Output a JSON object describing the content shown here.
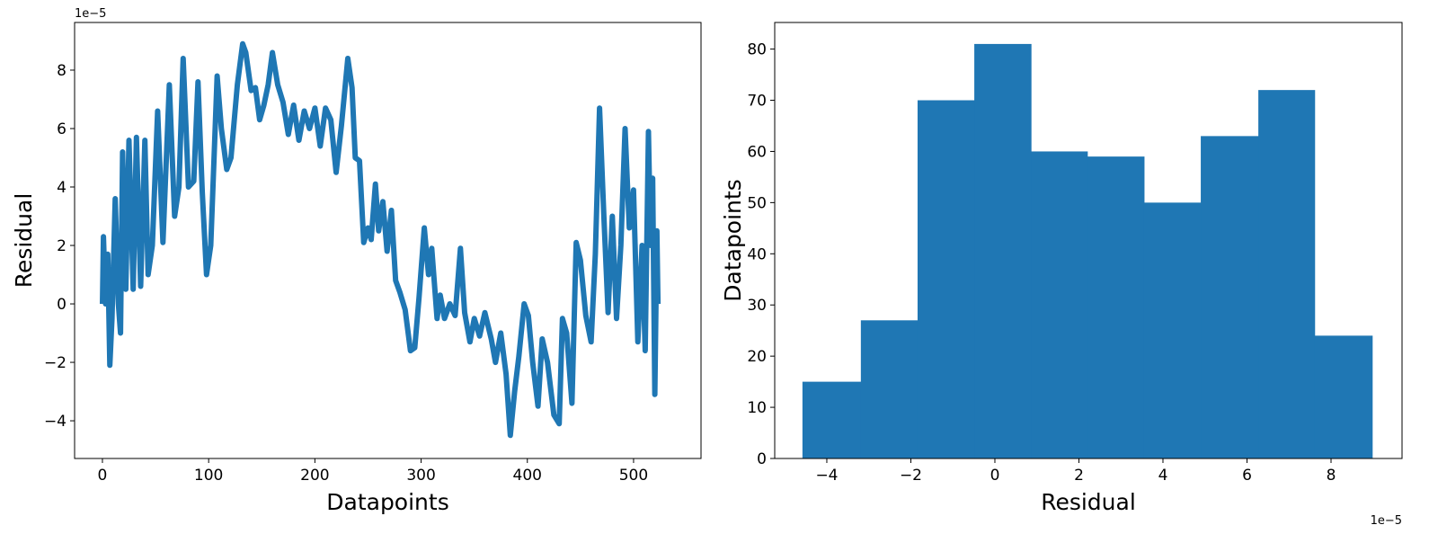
{
  "chart_data": [
    {
      "type": "line",
      "xlabel": "Datapoints",
      "ylabel": "Residual",
      "y_offset_label": "1e−5",
      "color": "#1f77b4",
      "x": [
        0,
        1,
        3,
        5,
        7,
        9,
        12,
        15,
        17,
        19,
        22,
        25,
        29,
        32,
        36,
        40,
        43,
        47,
        52,
        57,
        63,
        68,
        72,
        76,
        81,
        86,
        90,
        94,
        98,
        102,
        108,
        112,
        117,
        121,
        127,
        132,
        135,
        140,
        144,
        148,
        152,
        156,
        160,
        165,
        170,
        175,
        180,
        185,
        190,
        195,
        200,
        205,
        210,
        215,
        220,
        225,
        231,
        235,
        238,
        242,
        246,
        250,
        253,
        257,
        260,
        264,
        268,
        272,
        276,
        280,
        285,
        290,
        294,
        298,
        303,
        307,
        310,
        315,
        318,
        322,
        327,
        332,
        337,
        341,
        346,
        350,
        355,
        360,
        366,
        370,
        375,
        380,
        384,
        388,
        392,
        397,
        401,
        405,
        410,
        414,
        419,
        425,
        430,
        433,
        437,
        442,
        446,
        450,
        455,
        460,
        464,
        468,
        472,
        476,
        480,
        484,
        488,
        492,
        496,
        500,
        504,
        508,
        511,
        514,
        516,
        518,
        520,
        522,
        523
      ],
      "values": [
        0,
        2.3,
        0,
        1.7,
        -2.1,
        -0.5,
        3.6,
        0,
        -1,
        5.2,
        0.5,
        5.6,
        0.5,
        5.7,
        0.6,
        5.6,
        1,
        2,
        6.6,
        2.1,
        7.5,
        3,
        4,
        8.4,
        4,
        4.2,
        7.6,
        3.8,
        1,
        2,
        7.8,
        6,
        4.6,
        5,
        7.5,
        8.9,
        8.6,
        7.3,
        7.4,
        6.3,
        6.8,
        7.5,
        8.6,
        7.5,
        6.9,
        5.8,
        6.8,
        5.6,
        6.6,
        6,
        6.7,
        5.4,
        6.7,
        6.3,
        4.5,
        6.1,
        8.4,
        7.4,
        5,
        4.9,
        2.1,
        2.6,
        2.2,
        4.1,
        2.5,
        3.5,
        1.8,
        3.2,
        0.8,
        0.4,
        -0.2,
        -1.6,
        -1.5,
        0.2,
        2.6,
        1,
        1.9,
        -0.5,
        0.3,
        -0.5,
        0,
        -0.4,
        1.9,
        -0.3,
        -1.3,
        -0.5,
        -1.1,
        -0.3,
        -1.2,
        -2,
        -1,
        -2.4,
        -4.5,
        -3,
        -1.8,
        0,
        -0.4,
        -2,
        -3.5,
        -1.2,
        -2,
        -3.8,
        -4.1,
        -0.5,
        -1,
        -3.4,
        2.1,
        1.5,
        -0.4,
        -1.3,
        1.7,
        6.7,
        3,
        -0.3,
        3,
        -0.5,
        2,
        6,
        2.6,
        3.9,
        -1.3,
        2,
        -1.6,
        5.9,
        2,
        4.3,
        -3.1,
        2.5,
        0
      ],
      "xlim": [
        -26.2,
        563.5
      ],
      "ylim": [
        -5.29,
        9.63
      ],
      "xticks": [
        0,
        100,
        200,
        300,
        400,
        500
      ],
      "yticks": [
        {
          "value": -4,
          "label": "−4"
        },
        {
          "value": -2,
          "label": "−2"
        },
        0,
        2,
        4,
        6,
        8
      ]
    },
    {
      "type": "histogram",
      "xlabel": "Residual",
      "ylabel": "Datapoints",
      "x_offset_label": "1e−5",
      "color": "#1f77b4",
      "bins": [
        -4.58,
        -3.19,
        -1.84,
        -0.49,
        0.86,
        2.2,
        3.55,
        4.9,
        6.27,
        7.61,
        8.98
      ],
      "values": [
        15,
        27,
        70,
        81,
        60,
        59,
        50,
        63,
        72,
        24
      ],
      "xlim": [
        -5.24,
        9.69
      ],
      "ylim": [
        0,
        85.2
      ],
      "xticks": [
        {
          "value": -4,
          "label": "−4"
        },
        {
          "value": -2,
          "label": "−2"
        },
        0,
        2,
        4,
        6,
        8
      ],
      "yticks": [
        0,
        10,
        20,
        30,
        40,
        50,
        60,
        70,
        80
      ]
    }
  ]
}
